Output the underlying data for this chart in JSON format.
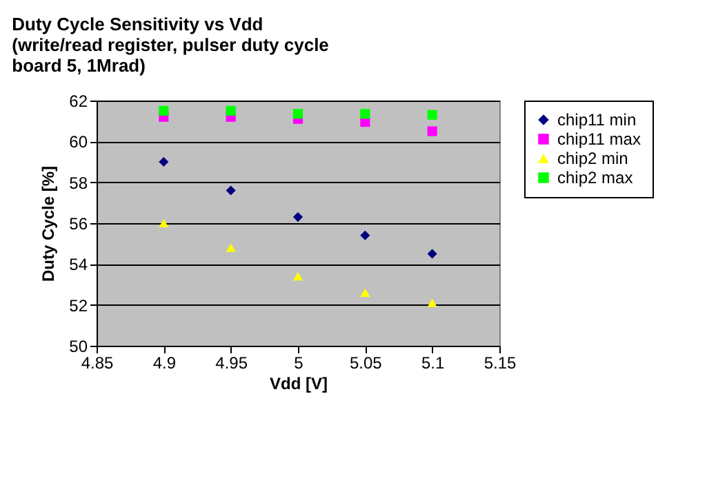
{
  "chart_data": {
    "type": "scatter",
    "title": "Duty Cycle Sensitivity vs Vdd\n(write/read register, pulser duty cycle\nboard 5, 1Mrad)",
    "xlabel": "Vdd [V]",
    "ylabel": "Duty Cycle [%]",
    "x": [
      4.9,
      4.95,
      5.0,
      5.05,
      5.1
    ],
    "series": [
      {
        "name": "chip11 min",
        "color": "#000080",
        "marker": "diamond",
        "values": [
          59.0,
          57.6,
          56.3,
          55.4,
          54.5
        ]
      },
      {
        "name": "chip11 max",
        "color": "#ff00ff",
        "marker": "square",
        "values": [
          61.2,
          61.2,
          61.1,
          60.95,
          60.5
        ]
      },
      {
        "name": "chip2 min",
        "color": "#ffff00",
        "marker": "triangle",
        "values": [
          56.0,
          54.8,
          53.4,
          52.6,
          52.1
        ]
      },
      {
        "name": "chip2 max",
        "color": "#00ff00",
        "marker": "square",
        "values": [
          61.5,
          61.5,
          61.35,
          61.35,
          61.3
        ]
      }
    ],
    "xlim": [
      4.85,
      5.15
    ],
    "xticks": [
      4.85,
      4.9,
      4.95,
      5,
      5.05,
      5.1,
      5.15
    ],
    "ylim": [
      50,
      62
    ],
    "yticks": [
      50,
      52,
      54,
      56,
      58,
      60,
      62
    ],
    "grid": "y",
    "legend": "right"
  }
}
